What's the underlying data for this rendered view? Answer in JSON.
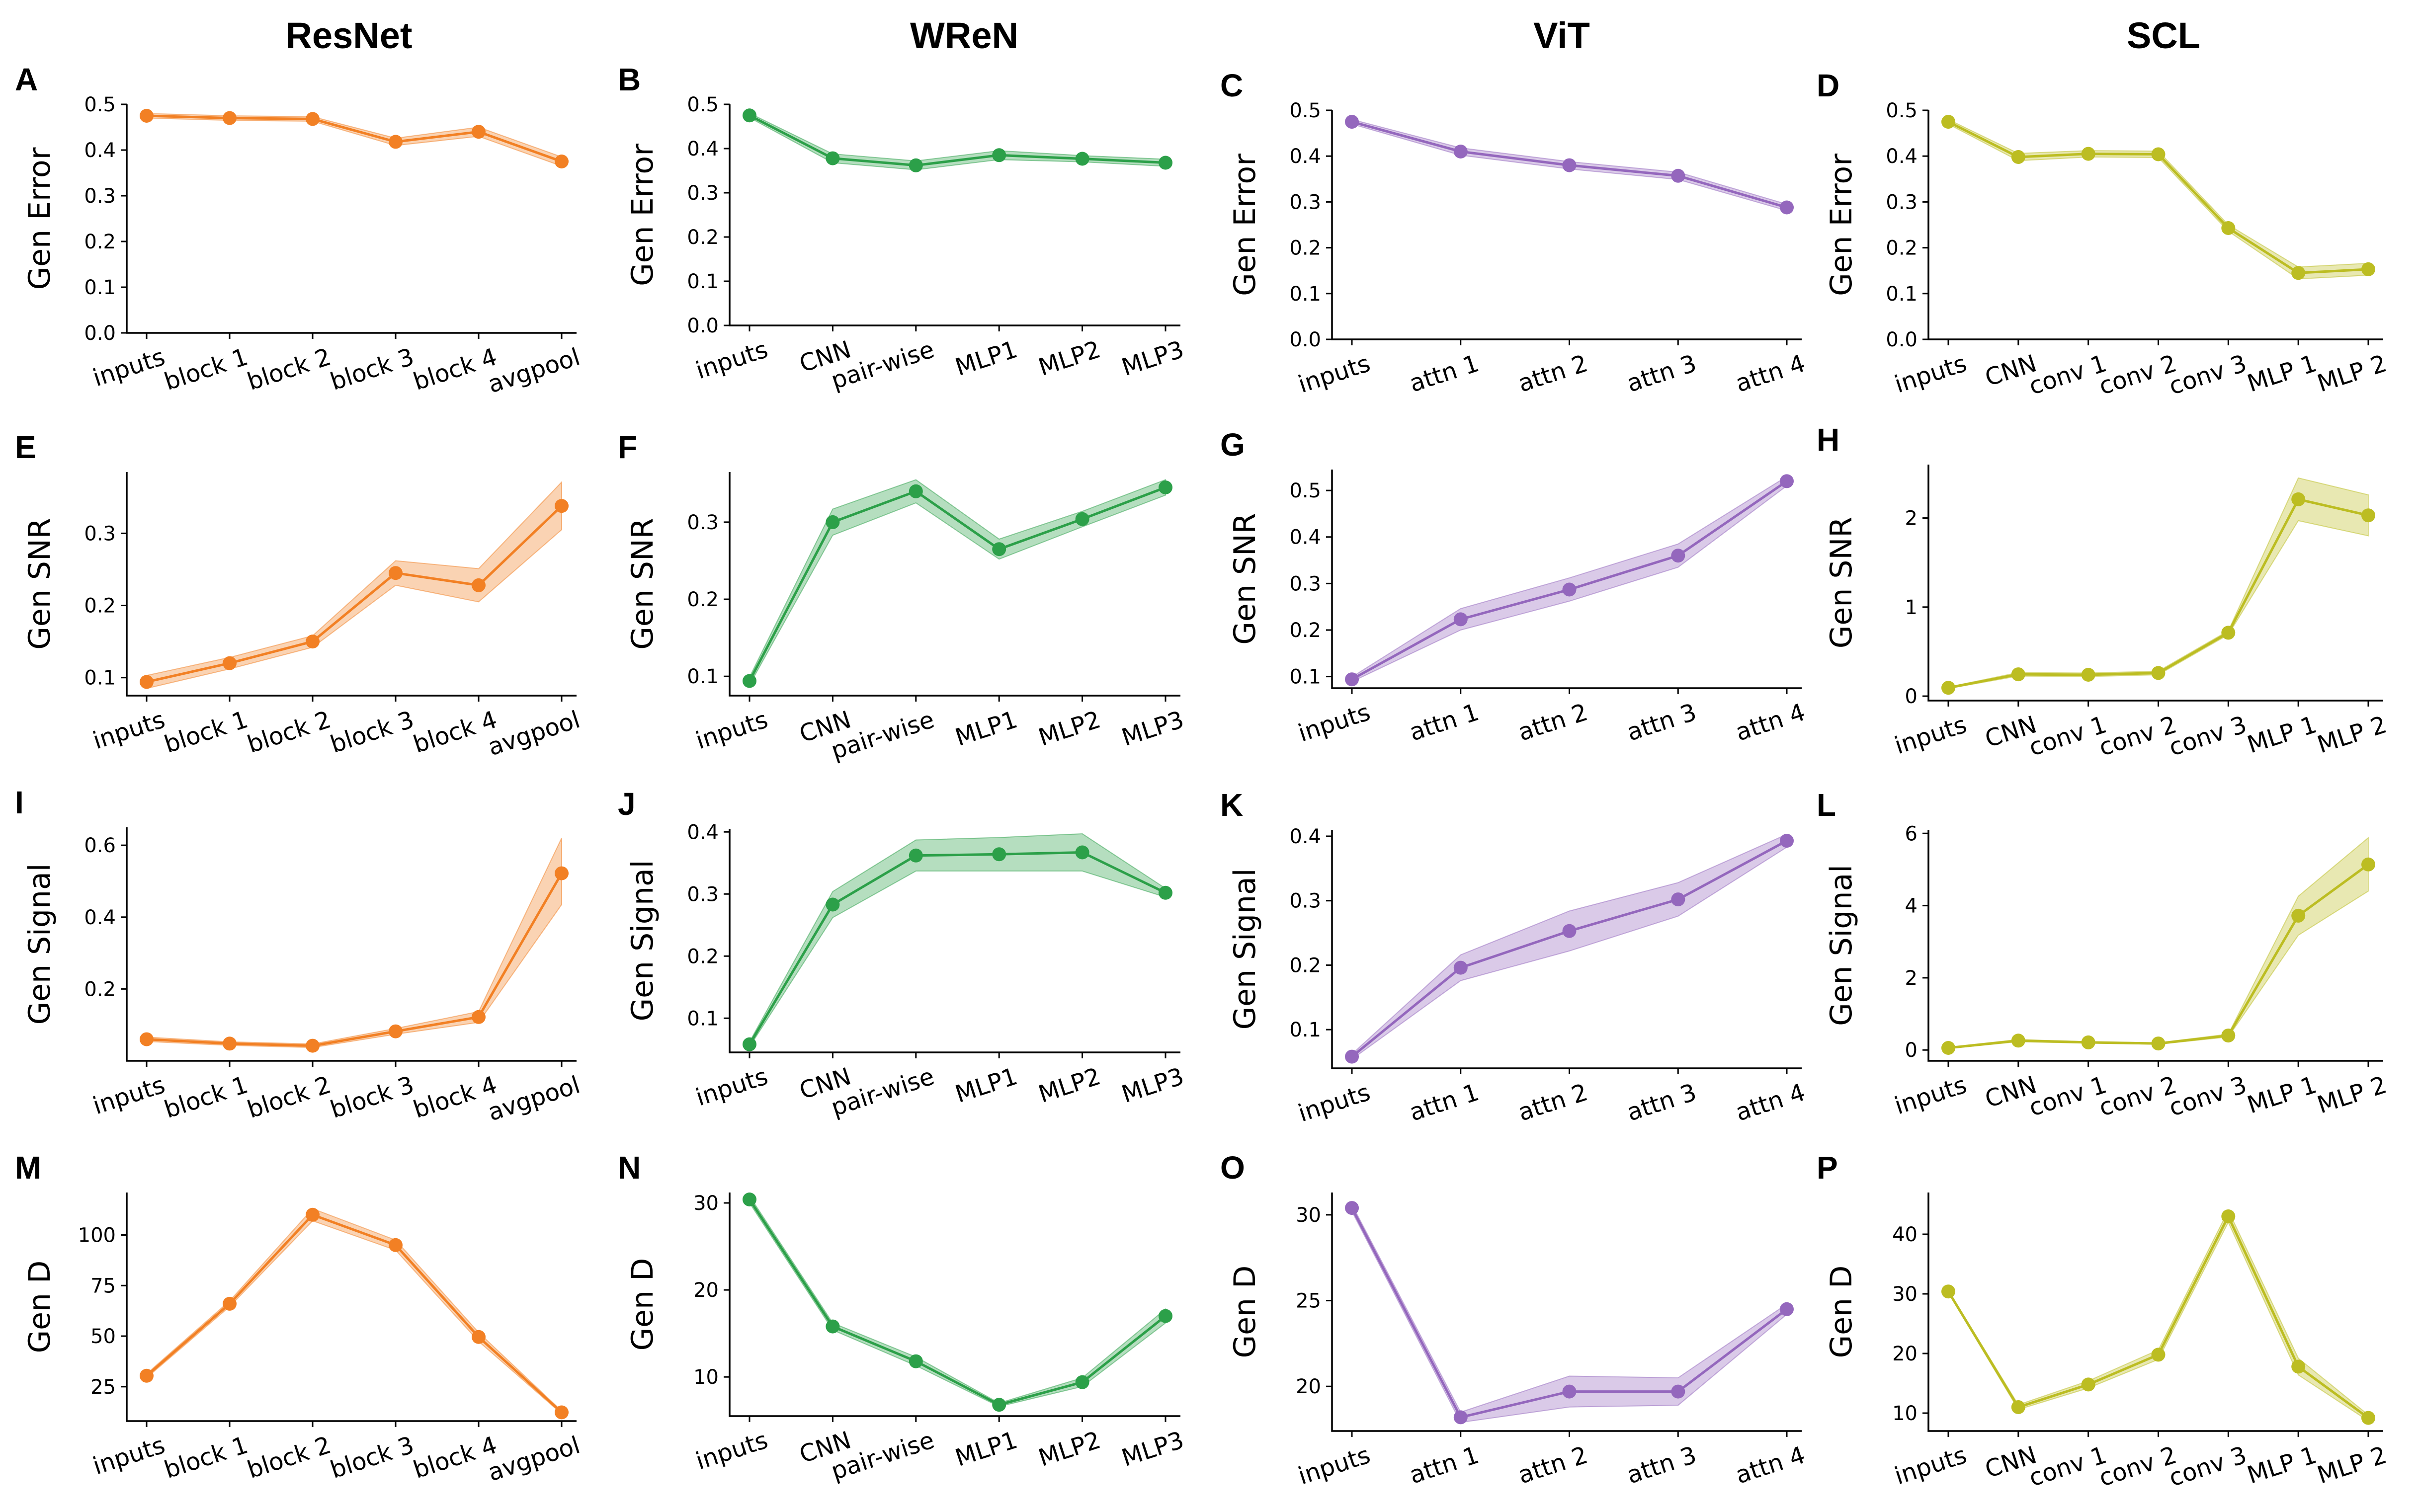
{
  "colors": {
    "ResNet": "#f28024",
    "WReN": "#2ca049",
    "ViT": "#9467bd",
    "SCL": "#bcbd22"
  },
  "columns": [
    "ResNet",
    "WReN",
    "ViT",
    "SCL"
  ],
  "rows": [
    "Gen Error",
    "Gen SNR",
    "Gen Signal",
    "Gen D"
  ],
  "chart_data": [
    {
      "panel": "A",
      "type": "line",
      "model": "ResNet",
      "ylabel": "Gen Error",
      "categories": [
        "inputs",
        "block 1",
        "block 2",
        "block 3",
        "block 4",
        "avgpool"
      ],
      "values": [
        0.475,
        0.47,
        0.468,
        0.418,
        0.44,
        0.375
      ],
      "lower": [
        0.47,
        0.465,
        0.463,
        0.41,
        0.43,
        0.365
      ],
      "upper": [
        0.48,
        0.475,
        0.473,
        0.426,
        0.45,
        0.385
      ],
      "ylim": [
        0,
        0.5
      ],
      "yticks": [
        0.0,
        0.1,
        0.2,
        0.3,
        0.4,
        0.5
      ],
      "ytick_labels": [
        "0.0",
        "0.1",
        "0.2",
        "0.3",
        "0.4",
        "0.5"
      ]
    },
    {
      "panel": "B",
      "type": "line",
      "model": "WReN",
      "ylabel": "Gen Error",
      "categories": [
        "inputs",
        "CNN",
        "pair-wise",
        "MLP1",
        "MLP2",
        "MLP3"
      ],
      "values": [
        0.475,
        0.378,
        0.362,
        0.385,
        0.377,
        0.368
      ],
      "lower": [
        0.47,
        0.368,
        0.352,
        0.375,
        0.37,
        0.36
      ],
      "upper": [
        0.48,
        0.388,
        0.372,
        0.395,
        0.384,
        0.376
      ],
      "ylim": [
        0,
        0.5
      ],
      "yticks": [
        0.0,
        0.1,
        0.2,
        0.3,
        0.4,
        0.5
      ],
      "ytick_labels": [
        "0.0",
        "0.1",
        "0.2",
        "0.3",
        "0.4",
        "0.5"
      ]
    },
    {
      "panel": "C",
      "type": "line",
      "model": "ViT",
      "ylabel": "Gen Error",
      "categories": [
        "inputs",
        "attn 1",
        "attn 2",
        "attn 3",
        "attn 4"
      ],
      "values": [
        0.475,
        0.41,
        0.38,
        0.357,
        0.288
      ],
      "lower": [
        0.47,
        0.402,
        0.372,
        0.349,
        0.281
      ],
      "upper": [
        0.48,
        0.418,
        0.388,
        0.365,
        0.295
      ],
      "ylim": [
        0,
        0.5
      ],
      "yticks": [
        0.0,
        0.1,
        0.2,
        0.3,
        0.4,
        0.5
      ],
      "ytick_labels": [
        "0.0",
        "0.1",
        "0.2",
        "0.3",
        "0.4",
        "0.5"
      ]
    },
    {
      "panel": "D",
      "type": "line",
      "model": "SCL",
      "ylabel": "Gen Error",
      "categories": [
        "inputs",
        "CNN",
        "conv 1",
        "conv 2",
        "conv 3",
        "MLP 1",
        "MLP 2"
      ],
      "values": [
        0.475,
        0.398,
        0.405,
        0.404,
        0.243,
        0.145,
        0.153
      ],
      "lower": [
        0.47,
        0.39,
        0.398,
        0.397,
        0.236,
        0.132,
        0.14
      ],
      "upper": [
        0.48,
        0.406,
        0.412,
        0.411,
        0.25,
        0.158,
        0.166
      ],
      "ylim": [
        0,
        0.5
      ],
      "yticks": [
        0.0,
        0.1,
        0.2,
        0.3,
        0.4,
        0.5
      ],
      "ytick_labels": [
        "0.0",
        "0.1",
        "0.2",
        "0.3",
        "0.4",
        "0.5"
      ]
    },
    {
      "panel": "E",
      "type": "line",
      "model": "ResNet",
      "ylabel": "Gen SNR",
      "categories": [
        "inputs",
        "block 1",
        "block 2",
        "block 3",
        "block 4",
        "avgpool"
      ],
      "values": [
        0.094,
        0.12,
        0.15,
        0.245,
        0.228,
        0.338
      ],
      "lower": [
        0.085,
        0.112,
        0.142,
        0.228,
        0.205,
        0.305
      ],
      "upper": [
        0.103,
        0.128,
        0.158,
        0.262,
        0.251,
        0.371
      ],
      "ylim": [
        0.075,
        0.385
      ],
      "yticks": [
        0.1,
        0.2,
        0.3
      ],
      "ytick_labels": [
        "0.1",
        "0.2",
        "0.3"
      ]
    },
    {
      "panel": "F",
      "type": "line",
      "model": "WReN",
      "ylabel": "Gen SNR",
      "categories": [
        "inputs",
        "CNN",
        "pair-wise",
        "MLP1",
        "MLP2",
        "MLP3"
      ],
      "values": [
        0.094,
        0.3,
        0.34,
        0.265,
        0.304,
        0.345
      ],
      "lower": [
        0.089,
        0.283,
        0.325,
        0.252,
        0.294,
        0.335
      ],
      "upper": [
        0.099,
        0.317,
        0.355,
        0.278,
        0.314,
        0.355
      ],
      "ylim": [
        0.075,
        0.365
      ],
      "yticks": [
        0.1,
        0.2,
        0.3
      ],
      "ytick_labels": [
        "0.1",
        "0.2",
        "0.3"
      ]
    },
    {
      "panel": "G",
      "type": "line",
      "model": "ViT",
      "ylabel": "Gen SNR",
      "categories": [
        "inputs",
        "attn 1",
        "attn 2",
        "attn 3",
        "attn 4"
      ],
      "values": [
        0.094,
        0.223,
        0.287,
        0.36,
        0.52
      ],
      "lower": [
        0.089,
        0.2,
        0.262,
        0.335,
        0.51
      ],
      "upper": [
        0.099,
        0.246,
        0.312,
        0.385,
        0.53
      ],
      "ylim": [
        0.075,
        0.545
      ],
      "yticks": [
        0.1,
        0.2,
        0.3,
        0.4,
        0.5
      ],
      "ytick_labels": [
        "0.1",
        "0.2",
        "0.3",
        "0.4",
        "0.5"
      ]
    },
    {
      "panel": "H",
      "type": "line",
      "model": "SCL",
      "ylabel": "Gen SNR",
      "categories": [
        "inputs",
        "CNN",
        "conv 1",
        "conv 2",
        "conv 3",
        "MLP 1",
        "MLP 2"
      ],
      "values": [
        0.094,
        0.245,
        0.24,
        0.26,
        0.712,
        2.21,
        2.03
      ],
      "lower": [
        0.085,
        0.225,
        0.22,
        0.24,
        0.69,
        1.97,
        1.8
      ],
      "upper": [
        0.103,
        0.265,
        0.26,
        0.28,
        0.734,
        2.45,
        2.26
      ],
      "ylim": [
        -0.05,
        2.6
      ],
      "yticks": [
        0,
        1,
        2
      ],
      "ytick_labels": [
        "0",
        "1",
        "2"
      ]
    },
    {
      "panel": "I",
      "type": "line",
      "model": "ResNet",
      "ylabel": "Gen Signal",
      "categories": [
        "inputs",
        "block 1",
        "block 2",
        "block 3",
        "block 4",
        "avgpool"
      ],
      "values": [
        0.06,
        0.048,
        0.042,
        0.082,
        0.122,
        0.522
      ],
      "lower": [
        0.054,
        0.043,
        0.037,
        0.074,
        0.107,
        0.435
      ],
      "upper": [
        0.066,
        0.053,
        0.047,
        0.09,
        0.137,
        0.62
      ],
      "ylim": [
        0.0,
        0.65
      ],
      "yticks": [
        0.2,
        0.4,
        0.6
      ],
      "ytick_labels": [
        "0.2",
        "0.4",
        "0.6"
      ]
    },
    {
      "panel": "J",
      "type": "line",
      "model": "WReN",
      "ylabel": "Gen Signal",
      "categories": [
        "inputs",
        "CNN",
        "pair-wise",
        "MLP1",
        "MLP2",
        "MLP3"
      ],
      "values": [
        0.058,
        0.283,
        0.362,
        0.364,
        0.367,
        0.302
      ],
      "lower": [
        0.054,
        0.262,
        0.337,
        0.337,
        0.337,
        0.295
      ],
      "upper": [
        0.062,
        0.304,
        0.387,
        0.391,
        0.397,
        0.309
      ],
      "ylim": [
        0.045,
        0.405
      ],
      "yticks": [
        0.1,
        0.2,
        0.3,
        0.4
      ],
      "ytick_labels": [
        "0.1",
        "0.2",
        "0.3",
        "0.4"
      ]
    },
    {
      "panel": "K",
      "type": "line",
      "model": "ViT",
      "ylabel": "Gen Signal",
      "categories": [
        "inputs",
        "attn 1",
        "attn 2",
        "attn 3",
        "attn 4"
      ],
      "values": [
        0.058,
        0.196,
        0.253,
        0.302,
        0.393
      ],
      "lower": [
        0.054,
        0.176,
        0.222,
        0.276,
        0.383
      ],
      "upper": [
        0.062,
        0.216,
        0.284,
        0.328,
        0.403
      ],
      "ylim": [
        0.04,
        0.41
      ],
      "yticks": [
        0.1,
        0.2,
        0.3,
        0.4
      ],
      "ytick_labels": [
        "0.1",
        "0.2",
        "0.3",
        "0.4"
      ]
    },
    {
      "panel": "L",
      "type": "line",
      "model": "SCL",
      "ylabel": "Gen Signal",
      "categories": [
        "inputs",
        "CNN",
        "conv 1",
        "conv 2",
        "conv 3",
        "MLP 1",
        "MLP 2"
      ],
      "values": [
        0.058,
        0.26,
        0.21,
        0.18,
        0.4,
        3.72,
        5.14
      ],
      "lower": [
        0.04,
        0.23,
        0.19,
        0.16,
        0.36,
        3.18,
        4.4
      ],
      "upper": [
        0.076,
        0.29,
        0.23,
        0.2,
        0.44,
        4.26,
        5.88
      ],
      "ylim": [
        -0.3,
        6.1
      ],
      "yticks": [
        0,
        2,
        4,
        6
      ],
      "ytick_labels": [
        "0",
        "2",
        "4",
        "6"
      ]
    },
    {
      "panel": "M",
      "type": "line",
      "model": "ResNet",
      "ylabel": "Gen D",
      "categories": [
        "inputs",
        "block 1",
        "block 2",
        "block 3",
        "block 4",
        "avgpool"
      ],
      "values": [
        30.4,
        66.0,
        110.0,
        95.0,
        49.6,
        12.3
      ],
      "lower": [
        29.4,
        64.6,
        107.0,
        92.5,
        47.4,
        11.6
      ],
      "upper": [
        31.4,
        67.4,
        113.0,
        97.5,
        51.8,
        13.0
      ],
      "ylim": [
        8,
        121
      ],
      "yticks": [
        25,
        50,
        75,
        100
      ],
      "ytick_labels": [
        "25",
        "50",
        "75",
        "100"
      ]
    },
    {
      "panel": "N",
      "type": "line",
      "model": "WReN",
      "ylabel": "Gen D",
      "categories": [
        "inputs",
        "CNN",
        "pair-wise",
        "MLP1",
        "MLP2",
        "MLP3"
      ],
      "values": [
        30.4,
        15.8,
        11.8,
        6.8,
        9.4,
        17.0
      ],
      "lower": [
        30.0,
        15.4,
        11.3,
        6.6,
        8.9,
        16.2
      ],
      "upper": [
        30.8,
        16.2,
        12.3,
        7.0,
        9.9,
        17.8
      ],
      "ylim": [
        5.5,
        31.2
      ],
      "yticks": [
        10,
        20,
        30
      ],
      "ytick_labels": [
        "10",
        "20",
        "30"
      ]
    },
    {
      "panel": "O",
      "type": "line",
      "model": "ViT",
      "ylabel": "Gen D",
      "categories": [
        "inputs",
        "attn 1",
        "attn 2",
        "attn 3",
        "attn 4"
      ],
      "values": [
        30.4,
        18.2,
        19.7,
        19.7,
        24.5
      ],
      "lower": [
        30.2,
        17.9,
        18.8,
        18.9,
        24.2
      ],
      "upper": [
        30.6,
        18.5,
        20.6,
        20.5,
        24.8
      ],
      "ylim": [
        17.4,
        31.3
      ],
      "yticks": [
        20,
        25,
        30
      ],
      "ytick_labels": [
        "20",
        "25",
        "30"
      ]
    },
    {
      "panel": "P",
      "type": "line",
      "model": "SCL",
      "ylabel": "Gen D",
      "categories": [
        "inputs",
        "CNN",
        "conv 1",
        "conv 2",
        "conv 3",
        "MLP 1",
        "MLP 2"
      ],
      "values": [
        30.4,
        11.0,
        14.8,
        19.8,
        43.0,
        17.8,
        9.2
      ],
      "lower": [
        30.2,
        10.6,
        14.2,
        19.0,
        42.0,
        16.4,
        8.7
      ],
      "upper": [
        30.6,
        11.4,
        15.4,
        20.6,
        44.0,
        19.2,
        9.7
      ],
      "ylim": [
        7,
        47
      ],
      "yticks": [
        10,
        20,
        30,
        40
      ],
      "ytick_labels": [
        "10",
        "20",
        "30",
        "40"
      ]
    }
  ]
}
